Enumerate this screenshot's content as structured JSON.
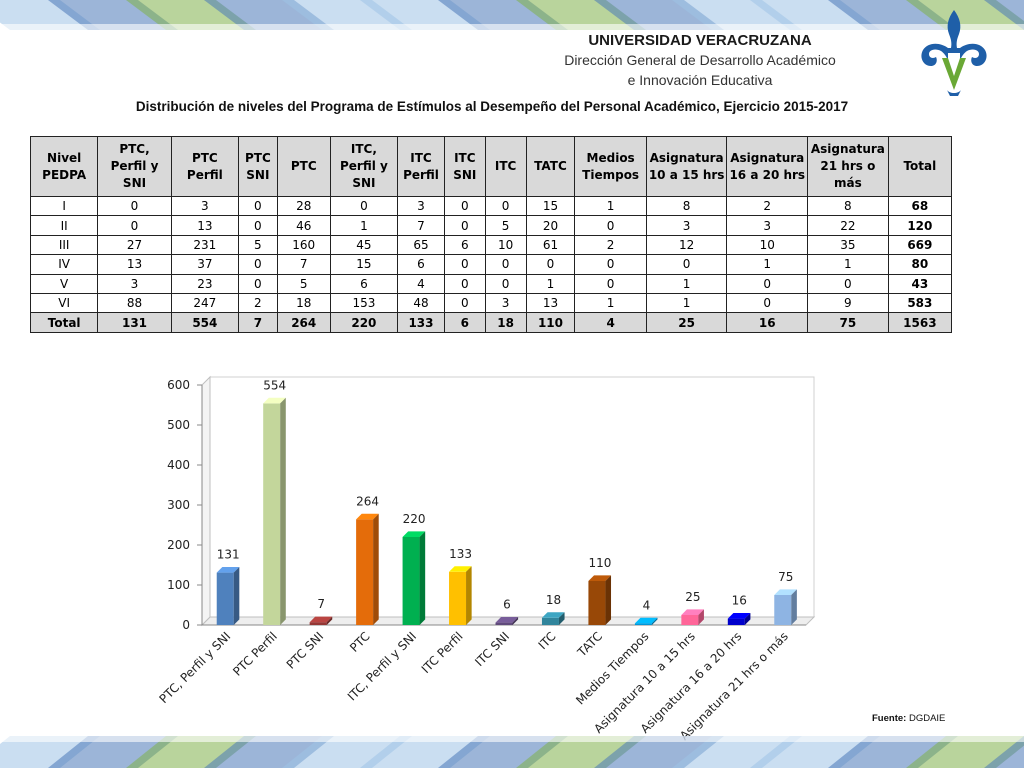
{
  "header": {
    "university": "UNIVERSIDAD VERACRUZANA",
    "direction_line1": "Dirección General de Desarrollo Académico",
    "direction_line2": "e Innovación Educativa"
  },
  "colors": {
    "band_blue": "#4a78b8",
    "band_light_blue": "#9fc3e6",
    "band_green": "#7fb04a",
    "logo_blue": "#1f5fa8",
    "logo_green": "#6aa835",
    "table_header_bg": "#d9d9d9"
  },
  "main_title": "Distribución de niveles del Programa de Estímulos al Desempeño del Personal Académico, Ejercicio 2015-2017",
  "table": {
    "headers": [
      "Nivel PEDPA",
      "PTC, Perfil y SNI",
      "PTC Perfil",
      "PTC SNI",
      "PTC",
      "ITC, Perfil y SNI",
      "ITC Perfil",
      "ITC SNI",
      "ITC",
      "TATC",
      "Medios Tiempos",
      "Asignatura 10  a 15 hrs",
      "Asignatura 16 a 20 hrs",
      "Asignatura 21 hrs o más",
      "Total"
    ],
    "rows": [
      [
        "I",
        "0",
        "3",
        "0",
        "28",
        "0",
        "3",
        "0",
        "0",
        "15",
        "1",
        "8",
        "2",
        "8",
        "68"
      ],
      [
        "II",
        "0",
        "13",
        "0",
        "46",
        "1",
        "7",
        "0",
        "5",
        "20",
        "0",
        "3",
        "3",
        "22",
        "120"
      ],
      [
        "III",
        "27",
        "231",
        "5",
        "160",
        "45",
        "65",
        "6",
        "10",
        "61",
        "2",
        "12",
        "10",
        "35",
        "669"
      ],
      [
        "IV",
        "13",
        "37",
        "0",
        "7",
        "15",
        "6",
        "0",
        "0",
        "0",
        "0",
        "0",
        "1",
        "1",
        "80"
      ],
      [
        "V",
        "3",
        "23",
        "0",
        "5",
        "6",
        "4",
        "0",
        "0",
        "1",
        "0",
        "1",
        "0",
        "0",
        "43"
      ],
      [
        "VI",
        "88",
        "247",
        "2",
        "18",
        "153",
        "48",
        "0",
        "3",
        "13",
        "1",
        "1",
        "0",
        "9",
        "583"
      ]
    ],
    "total_row": [
      "Total",
      "131",
      "554",
      "7",
      "264",
      "220",
      "133",
      "6",
      "18",
      "110",
      "4",
      "25",
      "16",
      "75",
      "1563"
    ]
  },
  "chart_data": {
    "type": "bar",
    "title": "",
    "xlabel": "",
    "ylabel": "",
    "ylim": [
      0,
      600
    ],
    "yticks": [
      0,
      100,
      200,
      300,
      400,
      500,
      600
    ],
    "grid": false,
    "legend": "none",
    "categories": [
      "PTC, Perfil y SNI",
      "PTC Perfil",
      "PTC SNI",
      "PTC",
      "ITC, Perfil y SNI",
      "ITC Perfil",
      "ITC SNI",
      "ITC",
      "TATC",
      "Medios Tiempos",
      "Asignatura 10  a 15 hrs",
      "Asignatura 16 a 20 hrs",
      "Asignatura 21 hrs o más"
    ],
    "values": [
      131,
      554,
      7,
      264,
      220,
      133,
      6,
      18,
      110,
      4,
      25,
      16,
      75
    ],
    "colors": [
      "#4f81bd",
      "#c3d69b",
      "#953735",
      "#e46c0a",
      "#00b050",
      "#ffc000",
      "#604a7b",
      "#31859c",
      "#984807",
      "#0097d9",
      "#ff6699",
      "#0000cc",
      "#8eb4e3"
    ]
  },
  "source": {
    "label": "Fuente:",
    "value": " DGDAIE"
  }
}
